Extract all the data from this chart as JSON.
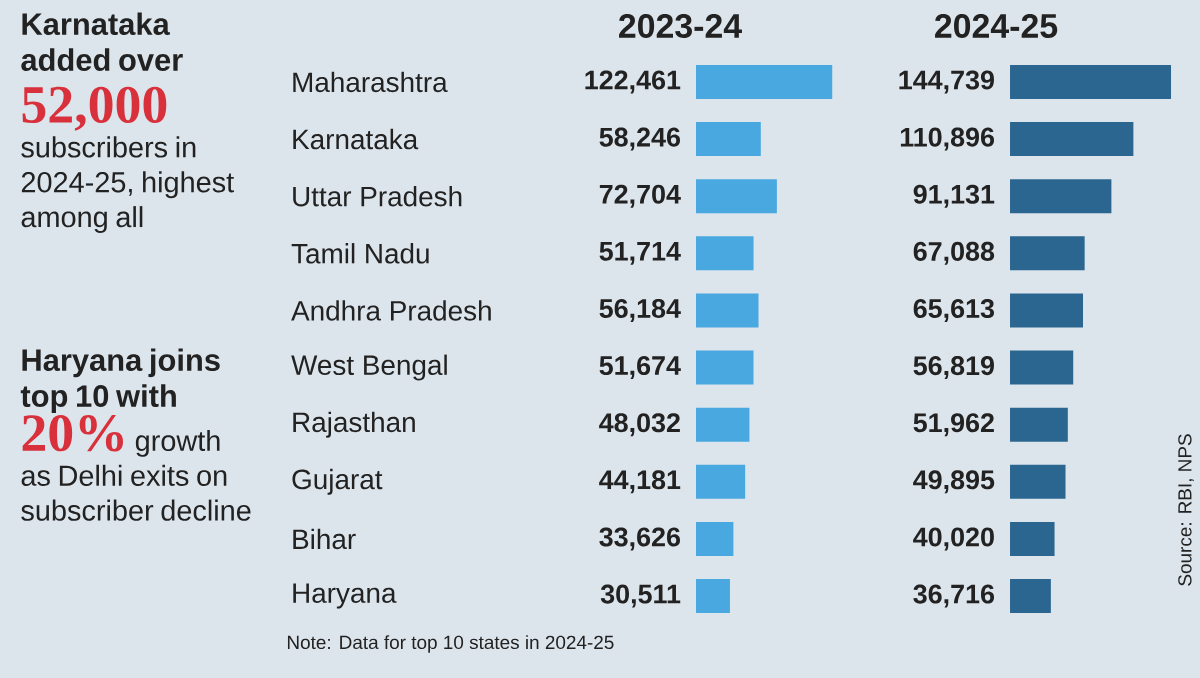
{
  "chart_data": [
    {
      "type": "bar",
      "orientation": "horizontal",
      "title": "2023-24",
      "categories": [
        "Maharashtra",
        "Karnataka",
        "Uttar Pradesh",
        "Tamil Nadu",
        "Andhra Pradesh",
        "West Bengal",
        "Rajasthan",
        "Gujarat",
        "Bihar",
        "Haryana"
      ],
      "values": [
        122461,
        58246,
        72704,
        51714,
        56184,
        51674,
        48032,
        44181,
        33626,
        30511
      ],
      "value_labels": [
        "122,461",
        "58,246",
        "72,704",
        "51,714",
        "56,184",
        "51,674",
        "48,032",
        "44,181",
        "33,626",
        "30,511"
      ],
      "color": "#4aa8e0",
      "tick_labels": "y",
      "annotations": [
        "Karnataka added over",
        "52,000",
        "subscribers in 2024-25, highest among all",
        "Haryana joins top 10 with",
        "20%",
        "growth as Delhi exits on subscriber decline",
        "Note: Data for top 10 states in 2024-25",
        "Source: RBI, NPS"
      ]
    },
    {
      "type": "bar",
      "orientation": "horizontal",
      "title": "2024-25",
      "values": [
        144739,
        110896,
        91131,
        67088,
        65613,
        56819,
        51962,
        49895,
        40020,
        36716
      ],
      "value_labels": [
        "144,739",
        "110,896",
        "91,131",
        "67,088",
        "65,613",
        "56,819",
        "51,962",
        "49,895",
        "40,020",
        "36,716"
      ],
      "color": "#2a6690",
      "tick_labels": false
    }
  ]
}
